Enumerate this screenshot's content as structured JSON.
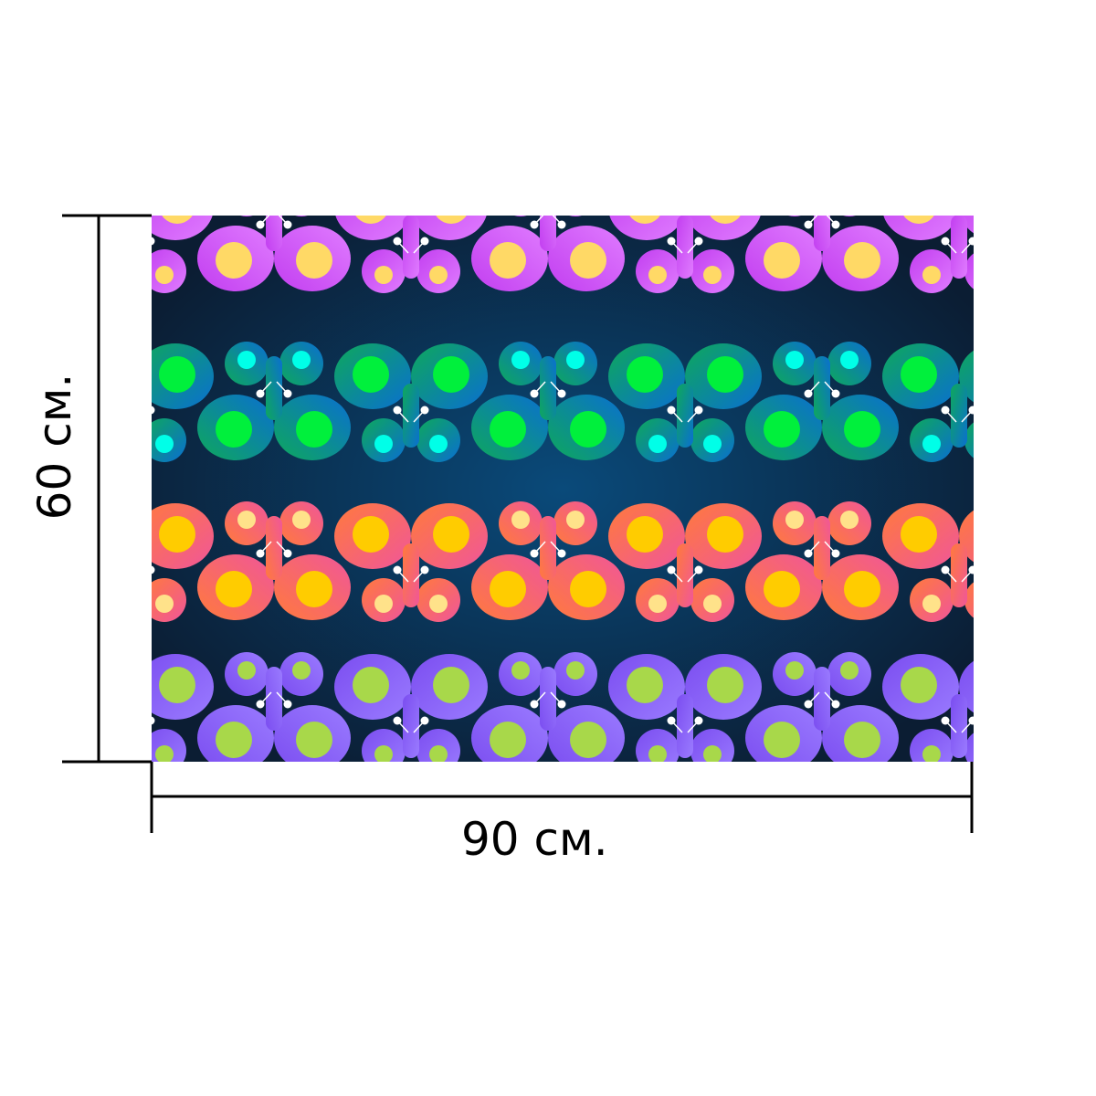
{
  "product": {
    "name": "fabric-swatch",
    "background_color": "#0b1d33",
    "glow_color": "#0a4a7a"
  },
  "pattern": {
    "motif": "butterfly",
    "rows": [
      {
        "wing": "#c23ef0",
        "wing_light": "#e07cff",
        "spot": "#ffd966",
        "spot_small": "#ffd966"
      },
      {
        "wing": "#0ea85b",
        "wing_light": "#0a6fd1",
        "spot": "#00f03c",
        "spot_small": "#00ffe8"
      },
      {
        "wing": "#ff7a3c",
        "wing_light": "#f0569a",
        "spot": "#ffcc00",
        "spot_small": "#ffe28a"
      },
      {
        "wing": "#7b4df0",
        "wing_light": "#9a7bff",
        "spot": "#a8d84a",
        "spot_small": "#a8d84a"
      }
    ]
  },
  "dimensions": {
    "width_label": "90 см.",
    "height_label": "60 см.",
    "line_color": "#000000"
  }
}
